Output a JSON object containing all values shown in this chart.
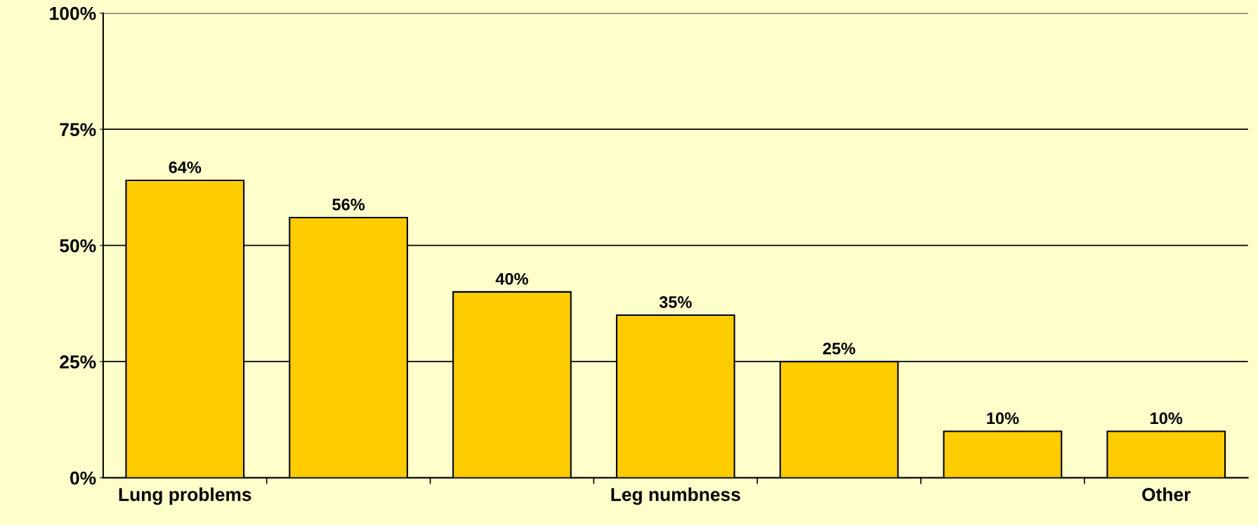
{
  "chart_data": {
    "type": "bar",
    "categories": [
      "Lung problems",
      null,
      null,
      "Leg numbness",
      null,
      null,
      "Other"
    ],
    "values": [
      64,
      56,
      40,
      35,
      25,
      10,
      10
    ],
    "value_labels": [
      "64%",
      "56%",
      "40%",
      "35%",
      "25%",
      "10%",
      "10%"
    ],
    "color": "#ffcc00",
    "ylim": [
      0,
      100
    ],
    "yticks": [
      {
        "value": 0,
        "label": "0%"
      },
      {
        "value": 25,
        "label": "25%"
      },
      {
        "value": 50,
        "label": "50%"
      },
      {
        "value": 75,
        "label": "75%"
      },
      {
        "value": 100,
        "label": "100%"
      }
    ],
    "grid": "y"
  }
}
